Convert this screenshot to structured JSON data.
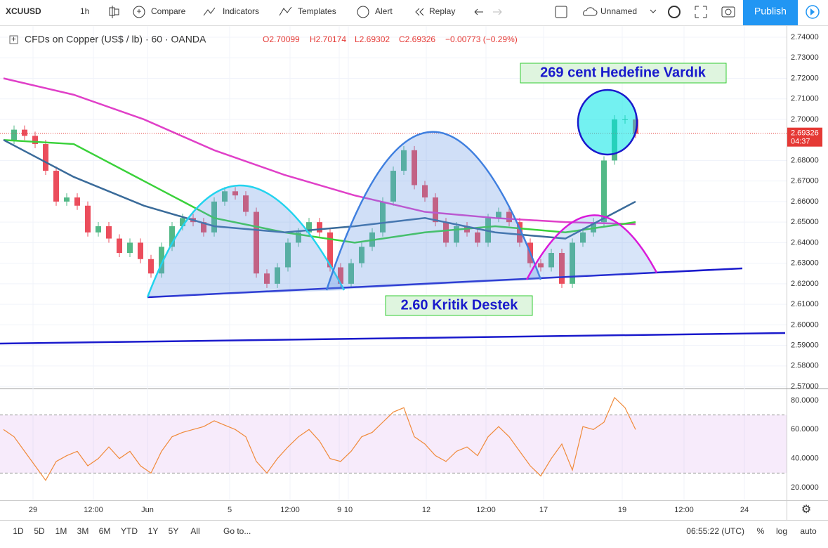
{
  "toolbar": {
    "symbol": "XCUUSD",
    "interval": "1h",
    "compare": "Compare",
    "indicators": "Indicators",
    "templates": "Templates",
    "alert": "Alert",
    "replay": "Replay",
    "layout": "Unnamed",
    "publish": "Publish"
  },
  "legend": {
    "title": "CFDs on Copper (US$ / lb) · 60 · OANDA",
    "open": "O2.70099",
    "high": "H2.70174",
    "low": "L2.69302",
    "close": "C2.69326",
    "change": "−0.00773 (−0.29%)"
  },
  "price_axis": {
    "ticks": [
      {
        "value": 2.74,
        "label": "2.74000"
      },
      {
        "value": 2.73,
        "label": "2.73000"
      },
      {
        "value": 2.72,
        "label": "2.72000"
      },
      {
        "value": 2.71,
        "label": "2.71000"
      },
      {
        "value": 2.7,
        "label": "2.70000"
      },
      {
        "value": 2.68,
        "label": "2.68000"
      },
      {
        "value": 2.67,
        "label": "2.67000"
      },
      {
        "value": 2.66,
        "label": "2.66000"
      },
      {
        "value": 2.65,
        "label": "2.65000"
      },
      {
        "value": 2.64,
        "label": "2.64000"
      },
      {
        "value": 2.63,
        "label": "2.63000"
      },
      {
        "value": 2.62,
        "label": "2.62000"
      },
      {
        "value": 2.61,
        "label": "2.61000"
      },
      {
        "value": 2.6,
        "label": "2.60000"
      },
      {
        "value": 2.59,
        "label": "2.59000"
      },
      {
        "value": 2.58,
        "label": "2.58000"
      },
      {
        "value": 2.57,
        "label": "2.57000"
      }
    ],
    "last_price": {
      "value": 2.69326,
      "label": "2.69326"
    },
    "countdown": "04:37"
  },
  "rsi_axis": {
    "ticks": [
      {
        "value": 80,
        "label": "80.0000"
      },
      {
        "value": 60,
        "label": "60.0000"
      },
      {
        "value": 40,
        "label": "40.0000"
      },
      {
        "value": 20,
        "label": "20.0000"
      }
    ],
    "upper": 70,
    "lower": 30
  },
  "time_axis": [
    "29",
    "12:00",
    "Jun",
    "5",
    "12:00",
    "9",
    "10",
    "12",
    "12:00",
    "17",
    "19",
    "12:00",
    "24"
  ],
  "price_closes": [
    2.69,
    2.695,
    2.692,
    2.688,
    2.675,
    2.66,
    2.662,
    2.658,
    2.645,
    2.648,
    2.642,
    2.635,
    2.64,
    2.632,
    2.625,
    2.638,
    2.648,
    2.652,
    2.65,
    2.645,
    2.66,
    2.665,
    2.663,
    2.655,
    2.625,
    2.62,
    2.628,
    2.64,
    2.645,
    2.65,
    2.645,
    2.628,
    2.62,
    2.63,
    2.638,
    2.645,
    2.66,
    2.675,
    2.685,
    2.668,
    2.662,
    2.65,
    2.64,
    2.648,
    2.645,
    2.64,
    2.652,
    2.655,
    2.65,
    2.64,
    2.63,
    2.628,
    2.635,
    2.62,
    2.64,
    2.645,
    2.65,
    2.68,
    2.7,
    2.7,
    2.693
  ],
  "moving_averages": [
    {
      "color": "#e040c8",
      "values": [
        2.72,
        2.712,
        2.7,
        2.685,
        2.673,
        2.663,
        2.655,
        2.652,
        2.65,
        2.649
      ]
    },
    {
      "color": "#3ad13a",
      "values": [
        2.69,
        2.688,
        2.67,
        2.652,
        2.645,
        2.64,
        2.645,
        2.648,
        2.645,
        2.65
      ]
    },
    {
      "color": "#3a6b9a",
      "values": [
        2.69,
        2.672,
        2.658,
        2.648,
        2.645,
        2.648,
        2.652,
        2.645,
        2.642,
        2.66
      ]
    }
  ],
  "rsi_values": [
    60,
    55,
    45,
    35,
    25,
    38,
    42,
    45,
    35,
    40,
    48,
    40,
    45,
    35,
    30,
    45,
    55,
    58,
    60,
    62,
    66,
    63,
    60,
    55,
    38,
    30,
    40,
    48,
    55,
    60,
    52,
    40,
    38,
    45,
    55,
    58,
    65,
    72,
    75,
    55,
    50,
    42,
    38,
    45,
    48,
    42,
    55,
    62,
    55,
    45,
    35,
    28,
    40,
    50,
    32,
    62,
    60,
    65,
    82,
    75,
    60
  ],
  "annotations": {
    "target": "269 cent Hedefine Vardık",
    "support": "2.60 Kritik Destek"
  },
  "bottom_bar": {
    "ranges": [
      "1D",
      "5D",
      "1M",
      "3M",
      "6M",
      "YTD",
      "1Y",
      "5Y",
      "All"
    ],
    "goto": "Go to...",
    "clock": "06:55:22 (UTC)",
    "percent": "%",
    "log": "log",
    "auto": "auto"
  }
}
